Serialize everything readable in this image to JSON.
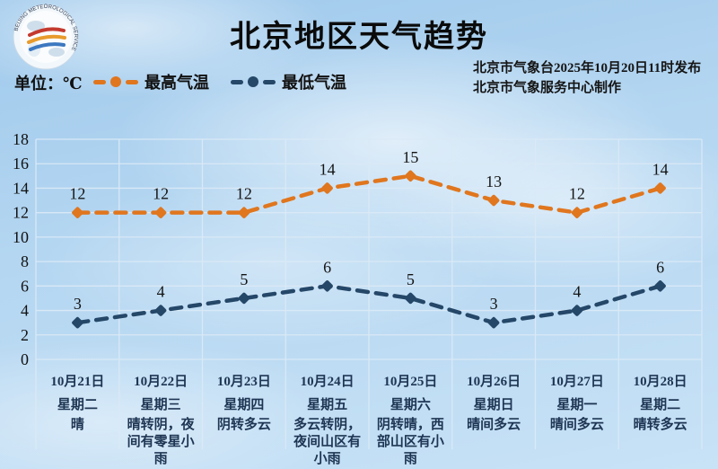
{
  "title": "北京地区天气趋势",
  "unit_label": "单位：℃",
  "logo": {
    "ring_text": "BEIJING METEOROLOGICAL SERVICE",
    "ring_text_bottom": "气象服务"
  },
  "legend": [
    {
      "label": "最高气温",
      "color": "#e0761e"
    },
    {
      "label": "最低气温",
      "color": "#254768"
    }
  ],
  "publish_info": {
    "line1": "北京市气象台2025年10月20日11时发布",
    "line2": "北京市气象服务中心制作"
  },
  "chart_data": {
    "type": "line",
    "title": "北京地区天气趋势",
    "ylabel": "℃",
    "ylim": [
      0,
      18
    ],
    "ytick_step": 2,
    "grid": true,
    "legend_position": "top-left",
    "line_style": "dashed",
    "categories": [
      {
        "date": "10月21日",
        "weekday": "星期二",
        "weather": "晴"
      },
      {
        "date": "10月22日",
        "weekday": "星期三",
        "weather": "晴转阴，夜间有零星小雨"
      },
      {
        "date": "10月23日",
        "weekday": "星期四",
        "weather": "阴转多云"
      },
      {
        "date": "10月24日",
        "weekday": "星期五",
        "weather": "多云转阴，夜间山区有小雨"
      },
      {
        "date": "10月25日",
        "weekday": "星期六",
        "weather": "阴转晴，西部山区有小雨"
      },
      {
        "date": "10月26日",
        "weekday": "星期日",
        "weather": "晴间多云"
      },
      {
        "date": "10月27日",
        "weekday": "星期一",
        "weather": "晴间多云"
      },
      {
        "date": "10月28日",
        "weekday": "星期二",
        "weather": "晴转多云"
      }
    ],
    "series": [
      {
        "name": "最高气温",
        "color": "#e0761e",
        "values": [
          12,
          12,
          12,
          14,
          15,
          13,
          12,
          14
        ]
      },
      {
        "name": "最低气温",
        "color": "#254768",
        "values": [
          3,
          4,
          5,
          6,
          5,
          3,
          4,
          6
        ]
      }
    ]
  },
  "colors": {
    "grid": "rgba(218, 233, 246, 0.95)",
    "axis_text": "#111111",
    "point_label": "#141414",
    "day_label": "#1e3553",
    "sky": "#aed2ee"
  }
}
